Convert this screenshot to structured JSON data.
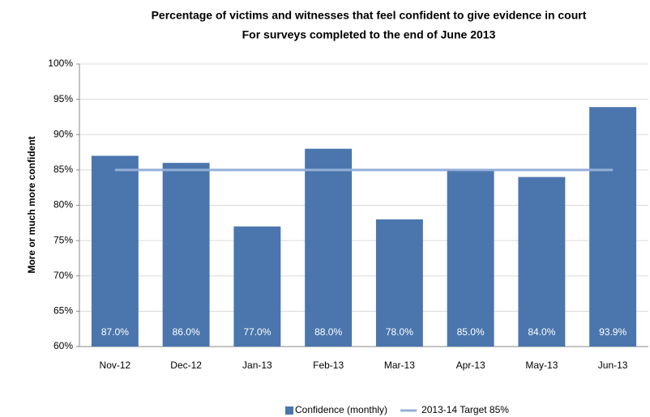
{
  "chart_data": {
    "type": "bar",
    "title": [
      "Percentage of victims and witnesses that feel confident to give evidence in court",
      "For surveys completed to the end of June 2013"
    ],
    "y_label": "More or much more confident",
    "categories": [
      "Nov-12",
      "Dec-12",
      "Jan-13",
      "Feb-13",
      "Mar-13",
      "Apr-13",
      "May-13",
      "Jun-13"
    ],
    "series": [
      {
        "name": "Confidence (monthly)",
        "type": "bar",
        "color": "#4a76ad",
        "values": [
          87.0,
          86.0,
          77.0,
          88.0,
          78.0,
          85.0,
          84.0,
          93.9
        ],
        "value_labels": [
          "87.0%",
          "86.0%",
          "77.0%",
          "88.0%",
          "78.0%",
          "85.0%",
          "84.0%",
          "93.9%"
        ]
      },
      {
        "name": "2013-14 Target 85%",
        "type": "line",
        "color": "#94afd8",
        "values": [
          85,
          85,
          85,
          85,
          85,
          85,
          85,
          85
        ]
      }
    ],
    "ylim": [
      60,
      100
    ],
    "yticks": [
      {
        "value": 60,
        "label": "60%"
      },
      {
        "value": 65,
        "label": "65%"
      },
      {
        "value": 70,
        "label": "70%"
      },
      {
        "value": 75,
        "label": "75%"
      },
      {
        "value": 80,
        "label": "80%"
      },
      {
        "value": 85,
        "label": "85%"
      },
      {
        "value": 90,
        "label": "90%"
      },
      {
        "value": 95,
        "label": "95%"
      },
      {
        "value": 100,
        "label": "100%"
      }
    ],
    "grid": true,
    "legend": "bottom"
  }
}
